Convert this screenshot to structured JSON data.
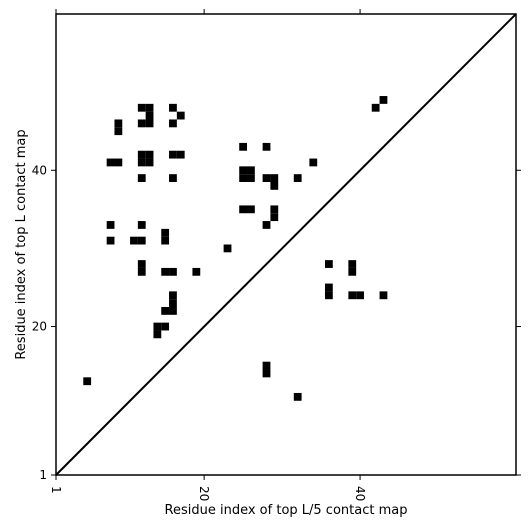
{
  "colors": {
    "background": "#ffffff",
    "cells": "#000000",
    "axes": "#000000"
  },
  "chart_data": {
    "type": "heatmap",
    "xlabel": "Residue index of top L/5 contact map",
    "ylabel": "Residue index of top L contact map",
    "xlim": [
      1,
      60
    ],
    "ylim": [
      1,
      60
    ],
    "xticks": [
      {
        "value": 1,
        "label": "1"
      },
      {
        "value": 20,
        "label": "20"
      },
      {
        "value": 40,
        "label": "40"
      }
    ],
    "yticks": [
      {
        "value": 1,
        "label": "1"
      },
      {
        "value": 20,
        "label": "20"
      },
      {
        "value": 40,
        "label": "40"
      }
    ],
    "diagonal": true,
    "grid": false,
    "cells": [
      [
        5,
        13
      ],
      [
        8,
        41
      ],
      [
        9,
        41
      ],
      [
        9,
        45
      ],
      [
        9,
        46
      ],
      [
        8,
        33
      ],
      [
        8,
        31
      ],
      [
        12,
        33
      ],
      [
        12,
        48
      ],
      [
        13,
        48
      ],
      [
        13,
        47
      ],
      [
        13,
        46
      ],
      [
        12,
        46
      ],
      [
        12,
        42
      ],
      [
        13,
        42
      ],
      [
        12,
        41
      ],
      [
        13,
        41
      ],
      [
        12,
        39
      ],
      [
        11,
        31
      ],
      [
        12,
        31
      ],
      [
        15,
        32
      ],
      [
        15,
        31
      ],
      [
        12,
        28
      ],
      [
        12,
        27
      ],
      [
        15,
        27
      ],
      [
        16,
        27
      ],
      [
        19,
        27
      ],
      [
        16,
        24
      ],
      [
        16,
        23
      ],
      [
        16,
        22
      ],
      [
        15,
        22
      ],
      [
        14,
        20
      ],
      [
        15,
        20
      ],
      [
        14,
        19
      ],
      [
        16,
        48
      ],
      [
        17,
        47
      ],
      [
        16,
        46
      ],
      [
        16,
        42
      ],
      [
        17,
        42
      ],
      [
        16,
        39
      ],
      [
        23,
        30
      ],
      [
        25,
        43
      ],
      [
        25,
        40
      ],
      [
        26,
        40
      ],
      [
        25,
        39
      ],
      [
        26,
        39
      ],
      [
        25,
        35
      ],
      [
        26,
        35
      ],
      [
        28,
        43
      ],
      [
        28,
        39
      ],
      [
        29,
        39
      ],
      [
        29,
        38
      ],
      [
        29,
        35
      ],
      [
        29,
        34
      ],
      [
        28,
        33
      ],
      [
        32,
        39
      ],
      [
        34,
        41
      ],
      [
        28,
        15
      ],
      [
        28,
        14
      ],
      [
        32,
        11
      ],
      [
        36,
        28
      ],
      [
        36,
        25
      ],
      [
        36,
        24
      ],
      [
        39,
        28
      ],
      [
        39,
        27
      ],
      [
        39,
        24
      ],
      [
        40,
        24
      ],
      [
        43,
        24
      ],
      [
        42,
        48
      ],
      [
        43,
        49
      ]
    ]
  }
}
